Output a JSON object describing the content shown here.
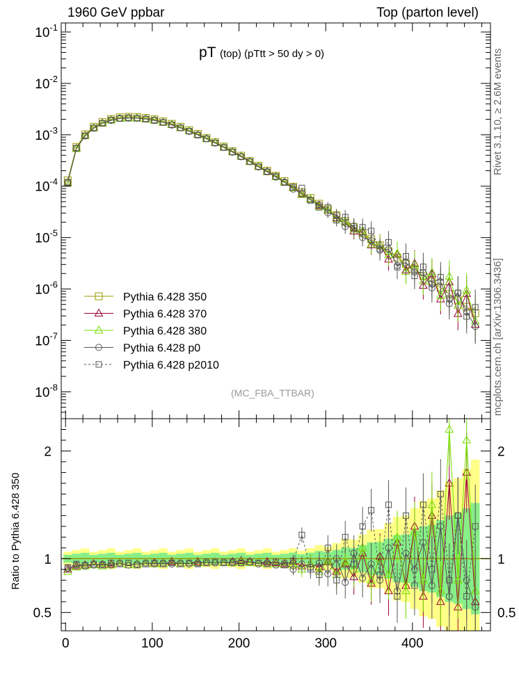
{
  "header": {
    "left": "1960 GeV ppbar",
    "right": "Top (parton level)"
  },
  "title": {
    "main": "pT",
    "sub": "(top) (pTtt > 50 dy > 0)"
  },
  "analysis_label": "(MC_FBA_TTBAR)",
  "side_labels": {
    "rivet": "Rivet 3.1.10, ≥ 2.6M events",
    "mcplots": "mcplots.cern.ch [arXiv:1306.3436]"
  },
  "ratio_ylabel": "Ratio to Pythia 6.428 350",
  "colors": {
    "s350": "#999900",
    "s370": "#990033",
    "s380": "#77dd00",
    "sp0": "#555555",
    "sp2010": "#555555",
    "band_yellow": "#ffff88",
    "band_green": "#88ee88"
  },
  "chart_data": {
    "type": "line",
    "x_range": [
      -5,
      490
    ],
    "main_y_scale": "log",
    "main_y_range": [
      3e-09,
      0.15
    ],
    "main_y_ticks": [
      {
        "value": 0.1,
        "label": "10^-1"
      },
      {
        "value": 0.01,
        "label": "10^-2"
      },
      {
        "value": 0.001,
        "label": "10^-3"
      },
      {
        "value": 0.0001,
        "label": "10^-4"
      },
      {
        "value": 1e-05,
        "label": "10^-5"
      },
      {
        "value": 1e-06,
        "label": "10^-6"
      },
      {
        "value": 1e-07,
        "label": "10^-7"
      },
      {
        "value": 1e-08,
        "label": "10^-8"
      }
    ],
    "ratio_y_range": [
      0.33,
      2.3
    ],
    "ratio_y_ticks": [
      {
        "value": 0.5,
        "label": "0.5"
      },
      {
        "value": 1,
        "label": "1"
      },
      {
        "value": 2,
        "label": "2"
      }
    ],
    "x_ticks": [
      {
        "value": 0,
        "label": "0"
      },
      {
        "value": 100,
        "label": "100"
      },
      {
        "value": 200,
        "label": "200"
      },
      {
        "value": 300,
        "label": "300"
      },
      {
        "value": 400,
        "label": "400"
      }
    ],
    "x": [
      2.5,
      12.5,
      22.5,
      32.5,
      42.5,
      52.5,
      62.5,
      72.5,
      82.5,
      92.5,
      102.5,
      112.5,
      122.5,
      132.5,
      142.5,
      152.5,
      162.5,
      172.5,
      182.5,
      192.5,
      202.5,
      212.5,
      222.5,
      232.5,
      242.5,
      252.5,
      262.5,
      272.5,
      282.5,
      292.5,
      302.5,
      312.5,
      322.5,
      332.5,
      342.5,
      352.5,
      362.5,
      372.5,
      382.5,
      392.5,
      402.5,
      412.5,
      422.5,
      432.5,
      442.5,
      452.5,
      462.5,
      472.5
    ],
    "series": [
      {
        "name": "Pythia 6.428 350",
        "key": "s350",
        "marker": "square",
        "dash": false,
        "values": [
          0.00013,
          0.00058,
          0.00102,
          0.00143,
          0.00178,
          0.00203,
          0.00218,
          0.00224,
          0.00222,
          0.00213,
          0.002,
          0.00183,
          0.00163,
          0.00143,
          0.00123,
          0.00104,
          0.00087,
          0.00072,
          0.00059,
          0.00048,
          0.00039,
          0.00031,
          0.00025,
          0.0002,
          0.00016,
          0.000125,
          9.75e-05,
          7.58e-05,
          5.88e-05,
          4.56e-05,
          3.53e-05,
          2.72e-05,
          2.09e-05,
          1.6e-05,
          1.22e-05,
          9.3e-06,
          7.1e-06,
          5.4e-06,
          4.1e-06,
          3.1e-06,
          2.4e-06,
          1.8e-06,
          1.4e-06,
          1.06e-06,
          8e-07,
          6e-07,
          4.5e-07,
          3.4e-07
        ],
        "ratio": [
          1,
          1,
          1,
          1,
          1,
          1,
          1,
          1,
          1,
          1,
          1,
          1,
          1,
          1,
          1,
          1,
          1,
          1,
          1,
          1,
          1,
          1,
          1,
          1,
          1,
          1,
          1,
          1,
          1,
          1,
          1,
          1,
          1,
          1,
          1,
          1,
          1,
          1,
          1,
          1,
          1,
          1,
          1,
          1,
          1,
          1,
          1,
          1
        ]
      },
      {
        "name": "Pythia 6.428 370",
        "key": "s370",
        "marker": "triangle",
        "dash": false,
        "ratio": [
          0.9,
          0.93,
          0.94,
          0.95,
          0.94,
          0.95,
          0.95,
          0.94,
          0.95,
          0.95,
          0.96,
          0.95,
          0.97,
          0.95,
          0.96,
          0.97,
          0.96,
          0.97,
          0.96,
          0.97,
          0.98,
          0.97,
          0.96,
          0.97,
          0.96,
          0.95,
          0.97,
          0.93,
          0.95,
          0.92,
          0.97,
          0.88,
          0.95,
          0.83,
          1.05,
          0.77,
          1.02,
          0.7,
          1.15,
          0.75,
          1.3,
          0.65,
          1.4,
          0.6,
          1.7,
          0.55,
          1.8,
          0.6
        ]
      },
      {
        "name": "Pythia 6.428 380",
        "key": "s380",
        "marker": "triangle",
        "dash": false,
        "ratio": [
          0.88,
          0.92,
          0.93,
          0.94,
          0.93,
          0.94,
          0.95,
          0.94,
          0.95,
          0.95,
          0.95,
          0.95,
          0.96,
          0.95,
          0.96,
          0.96,
          0.96,
          0.97,
          0.96,
          0.96,
          0.97,
          0.96,
          0.96,
          0.95,
          0.95,
          0.94,
          0.95,
          0.9,
          0.95,
          0.88,
          0.98,
          0.85,
          0.97,
          0.9,
          1.1,
          0.8,
          1.0,
          0.85,
          1.2,
          0.7,
          1.25,
          0.8,
          1.5,
          0.7,
          2.2,
          0.8,
          2.1,
          0.7
        ]
      },
      {
        "name": "Pythia 6.428 p0",
        "key": "sp0",
        "marker": "circle",
        "dash": false,
        "ratio": [
          0.91,
          0.94,
          0.93,
          0.94,
          0.95,
          0.94,
          0.96,
          0.94,
          0.95,
          0.96,
          0.95,
          0.96,
          0.95,
          0.96,
          0.95,
          0.96,
          0.97,
          0.96,
          0.97,
          0.96,
          0.96,
          0.97,
          0.95,
          0.96,
          0.94,
          0.96,
          0.9,
          0.95,
          0.92,
          0.96,
          0.86,
          1.0,
          0.78,
          1.05,
          0.82,
          0.95,
          0.8,
          1.1,
          0.7,
          1.05,
          0.9,
          1.15,
          0.75,
          1.3,
          0.65,
          1.4,
          0.8,
          0.55
        ]
      },
      {
        "name": "Pythia 6.428 p2010",
        "key": "sp2010",
        "marker": "square-small",
        "dash": true,
        "ratio": [
          0.92,
          0.95,
          0.94,
          0.95,
          0.94,
          0.96,
          0.95,
          0.96,
          0.94,
          0.95,
          0.96,
          0.95,
          0.96,
          0.95,
          0.96,
          0.95,
          0.96,
          0.97,
          0.96,
          0.97,
          0.96,
          0.97,
          0.96,
          0.95,
          0.97,
          0.94,
          0.98,
          1.22,
          0.9,
          0.85,
          1.1,
          0.8,
          1.2,
          0.95,
          1.3,
          1.45,
          0.85,
          1.5,
          0.65,
          1.4,
          0.75,
          1.5,
          0.9,
          1.6,
          0.8,
          1.4,
          0.65,
          1.3
        ]
      }
    ]
  }
}
